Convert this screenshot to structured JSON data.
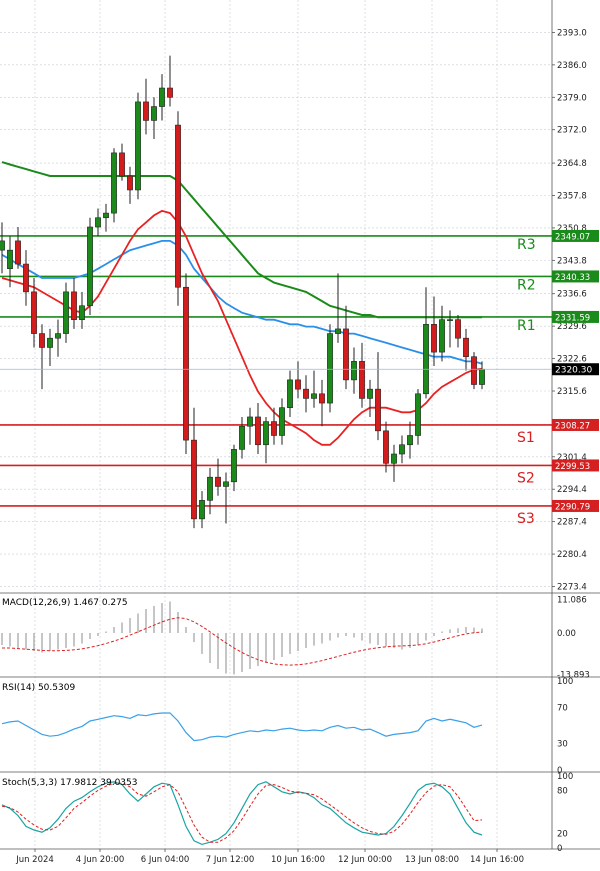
{
  "chart_data": {
    "type": "candlestick",
    "instrument_panel": {
      "y_ticks": [
        2393.0,
        2386.0,
        2379.0,
        2372.0,
        2364.8,
        2357.8,
        2350.8,
        2343.8,
        2336.6,
        2329.6,
        2322.6,
        2315.6,
        2308.4,
        2301.4,
        2294.4,
        2287.4,
        2280.4,
        2273.4
      ],
      "ylim": [
        2272.0,
        2400.0
      ],
      "last_price": "2320.30",
      "levels": [
        {
          "name": "R3",
          "value": 2349.07,
          "label": "2349.07",
          "color": "#1a8a1a"
        },
        {
          "name": "R2",
          "value": 2340.33,
          "label": "2340.33",
          "color": "#1a8a1a"
        },
        {
          "name": "R1",
          "value": 2331.59,
          "label": "2331.59",
          "color": "#1a8a1a"
        },
        {
          "name": "S1",
          "value": 2308.27,
          "label": "2308.27",
          "color": "#d42020"
        },
        {
          "name": "S2",
          "value": 2299.53,
          "label": "2299.53",
          "color": "#d42020"
        },
        {
          "name": "S3",
          "value": 2290.79,
          "label": "2290.79",
          "color": "#d42020"
        }
      ],
      "candles": [
        {
          "o": 2346,
          "h": 2352,
          "l": 2341,
          "c": 2348
        },
        {
          "o": 2342,
          "h": 2349,
          "l": 2338,
          "c": 2346
        },
        {
          "o": 2348,
          "h": 2351,
          "l": 2342,
          "c": 2343
        },
        {
          "o": 2343,
          "h": 2346,
          "l": 2334,
          "c": 2337
        },
        {
          "o": 2337,
          "h": 2340,
          "l": 2325,
          "c": 2328
        },
        {
          "o": 2328,
          "h": 2330,
          "l": 2316,
          "c": 2325
        },
        {
          "o": 2325,
          "h": 2329,
          "l": 2321,
          "c": 2327
        },
        {
          "o": 2327,
          "h": 2331,
          "l": 2323,
          "c": 2328
        },
        {
          "o": 2328,
          "h": 2339,
          "l": 2326,
          "c": 2337
        },
        {
          "o": 2337,
          "h": 2340,
          "l": 2329,
          "c": 2331
        },
        {
          "o": 2331,
          "h": 2337,
          "l": 2329,
          "c": 2334
        },
        {
          "o": 2334,
          "h": 2353,
          "l": 2332,
          "c": 2351
        },
        {
          "o": 2351,
          "h": 2355,
          "l": 2349,
          "c": 2353
        },
        {
          "o": 2353,
          "h": 2356,
          "l": 2350,
          "c": 2354
        },
        {
          "o": 2354,
          "h": 2368,
          "l": 2352,
          "c": 2367
        },
        {
          "o": 2367,
          "h": 2369,
          "l": 2361,
          "c": 2362
        },
        {
          "o": 2362,
          "h": 2364,
          "l": 2356,
          "c": 2359
        },
        {
          "o": 2359,
          "h": 2380,
          "l": 2357,
          "c": 2378
        },
        {
          "o": 2378,
          "h": 2383,
          "l": 2371,
          "c": 2374
        },
        {
          "o": 2374,
          "h": 2379,
          "l": 2370,
          "c": 2377
        },
        {
          "o": 2377,
          "h": 2384,
          "l": 2374,
          "c": 2381
        },
        {
          "o": 2381,
          "h": 2388,
          "l": 2377,
          "c": 2379
        },
        {
          "o": 2373,
          "h": 2376,
          "l": 2334,
          "c": 2338
        },
        {
          "o": 2338,
          "h": 2341,
          "l": 2302,
          "c": 2305
        },
        {
          "o": 2305,
          "h": 2312,
          "l": 2286,
          "c": 2288
        },
        {
          "o": 2288,
          "h": 2294,
          "l": 2286,
          "c": 2292
        },
        {
          "o": 2292,
          "h": 2299,
          "l": 2289,
          "c": 2297
        },
        {
          "o": 2297,
          "h": 2301,
          "l": 2293,
          "c": 2295
        },
        {
          "o": 2295,
          "h": 2298,
          "l": 2287,
          "c": 2296
        },
        {
          "o": 2296,
          "h": 2304,
          "l": 2294,
          "c": 2303
        },
        {
          "o": 2303,
          "h": 2310,
          "l": 2301,
          "c": 2308
        },
        {
          "o": 2308,
          "h": 2312,
          "l": 2304,
          "c": 2310
        },
        {
          "o": 2310,
          "h": 2313,
          "l": 2302,
          "c": 2304
        },
        {
          "o": 2304,
          "h": 2310,
          "l": 2300,
          "c": 2309
        },
        {
          "o": 2309,
          "h": 2312,
          "l": 2304,
          "c": 2306
        },
        {
          "o": 2306,
          "h": 2314,
          "l": 2304,
          "c": 2312
        },
        {
          "o": 2312,
          "h": 2320,
          "l": 2310,
          "c": 2318
        },
        {
          "o": 2318,
          "h": 2322,
          "l": 2314,
          "c": 2316
        },
        {
          "o": 2316,
          "h": 2319,
          "l": 2311,
          "c": 2314
        },
        {
          "o": 2314,
          "h": 2320,
          "l": 2312,
          "c": 2315
        },
        {
          "o": 2315,
          "h": 2318,
          "l": 2308,
          "c": 2313
        },
        {
          "o": 2313,
          "h": 2330,
          "l": 2311,
          "c": 2328
        },
        {
          "o": 2328,
          "h": 2341,
          "l": 2326,
          "c": 2329
        },
        {
          "o": 2329,
          "h": 2334,
          "l": 2316,
          "c": 2318
        },
        {
          "o": 2318,
          "h": 2325,
          "l": 2315,
          "c": 2322
        },
        {
          "o": 2322,
          "h": 2326,
          "l": 2312,
          "c": 2314
        },
        {
          "o": 2314,
          "h": 2318,
          "l": 2310,
          "c": 2316
        },
        {
          "o": 2316,
          "h": 2324,
          "l": 2305,
          "c": 2307
        },
        {
          "o": 2307,
          "h": 2309,
          "l": 2298,
          "c": 2300
        },
        {
          "o": 2300,
          "h": 2304,
          "l": 2296,
          "c": 2302
        },
        {
          "o": 2302,
          "h": 2306,
          "l": 2300,
          "c": 2304
        },
        {
          "o": 2304,
          "h": 2309,
          "l": 2301,
          "c": 2306
        },
        {
          "o": 2306,
          "h": 2316,
          "l": 2304,
          "c": 2315
        },
        {
          "o": 2315,
          "h": 2338,
          "l": 2314,
          "c": 2330
        },
        {
          "o": 2330,
          "h": 2336,
          "l": 2321,
          "c": 2324
        },
        {
          "o": 2324,
          "h": 2334,
          "l": 2322,
          "c": 2331
        },
        {
          "o": 2331,
          "h": 2333,
          "l": 2325,
          "c": 2331
        },
        {
          "o": 2331,
          "h": 2332,
          "l": 2325,
          "c": 2327
        },
        {
          "o": 2327,
          "h": 2329,
          "l": 2320,
          "c": 2323
        },
        {
          "o": 2323,
          "h": 2324,
          "l": 2316,
          "c": 2317
        },
        {
          "o": 2317,
          "h": 2322,
          "l": 2316,
          "c": 2320.3
        }
      ],
      "ma_slow": [
        2365,
        2364.5,
        2364,
        2363.5,
        2363,
        2362.5,
        2362,
        2362,
        2362,
        2362,
        2362,
        2362,
        2362,
        2362,
        2362,
        2362,
        2362,
        2362,
        2362,
        2362,
        2362,
        2362,
        2361,
        2359,
        2357,
        2355,
        2353,
        2351,
        2349,
        2347,
        2345,
        2343,
        2341,
        2340,
        2339,
        2338.5,
        2338,
        2337.5,
        2337,
        2336,
        2335,
        2334,
        2333.5,
        2333,
        2332.5,
        2332,
        2332,
        2331.5,
        2331.5,
        2331.5,
        2331.5,
        2331.5,
        2331.5,
        2331.5,
        2331.5,
        2331.5,
        2331.5,
        2331.5,
        2331.5,
        2331.5,
        2331.5
      ],
      "ma_mid": [
        2345,
        2344,
        2343,
        2342,
        2341,
        2340,
        2340,
        2340,
        2340,
        2340,
        2340.5,
        2341,
        2342,
        2343,
        2344,
        2345,
        2346,
        2346.5,
        2347,
        2347.5,
        2348,
        2348,
        2347,
        2345,
        2342,
        2340,
        2338,
        2336,
        2334.5,
        2333.5,
        2332.5,
        2332,
        2331.5,
        2331,
        2331,
        2330.5,
        2330,
        2330,
        2329.5,
        2329.5,
        2329,
        2328.5,
        2328.5,
        2328,
        2328,
        2327.5,
        2327,
        2326.5,
        2326,
        2325.5,
        2325,
        2324.5,
        2324,
        2323.5,
        2323,
        2323,
        2323,
        2322.5,
        2322,
        2322,
        2321.5
      ],
      "ma_fast": [
        2340,
        2339.5,
        2339,
        2338.5,
        2338,
        2337,
        2336,
        2335,
        2334,
        2333,
        2332.5,
        2334,
        2336,
        2339,
        2342,
        2345,
        2348,
        2350.5,
        2352,
        2353.5,
        2354.5,
        2354,
        2352,
        2349,
        2345,
        2341,
        2338,
        2335,
        2331,
        2327,
        2323,
        2319,
        2315.5,
        2313,
        2311,
        2309.5,
        2308.5,
        2307.5,
        2306.5,
        2305,
        2304,
        2304,
        2305.5,
        2307.5,
        2309.5,
        2311,
        2312,
        2312,
        2312,
        2311.5,
        2311,
        2311,
        2311.5,
        2313,
        2315,
        2316.5,
        2317.5,
        2318.5,
        2319.5,
        2320.2,
        2320.4
      ]
    },
    "x_tick_labels": [
      "Jun 2024",
      "4 Jun 20:00",
      "6 Jun 04:00",
      "7 Jun 12:00",
      "10 Jun 16:00",
      "12 Jun 00:00",
      "13 Jun 08:00",
      "14 Jun 16:00"
    ],
    "macd_panel": {
      "title": "MACD(12,26,9) 1.467 0.275",
      "y_ticks": [
        "11.086",
        "0.00",
        "-13.893"
      ],
      "ylim": [
        -14,
        12
      ],
      "histogram": [
        -4,
        -4.5,
        -5,
        -5.5,
        -6,
        -6.5,
        -6,
        -5.5,
        -5,
        -4.5,
        -3.5,
        -2,
        -1,
        0.5,
        2,
        3.5,
        5,
        6.5,
        8,
        9,
        10,
        10.5,
        7,
        2,
        -3,
        -7,
        -10,
        -12,
        -13.5,
        -13.8,
        -13,
        -12,
        -11,
        -10,
        -9,
        -8,
        -7,
        -6,
        -5,
        -4.2,
        -3.5,
        -2.5,
        -1.5,
        -1,
        -1.5,
        -2.5,
        -3.5,
        -4,
        -4.5,
        -5,
        -5.5,
        -5,
        -4,
        -2.5,
        -1,
        0.5,
        1.2,
        1.6,
        2,
        1.8,
        1.5
      ],
      "signal": [
        -5,
        -5,
        -5.2,
        -5.4,
        -5.6,
        -5.8,
        -5.9,
        -5.9,
        -5.8,
        -5.6,
        -5.3,
        -4.8,
        -4.2,
        -3.5,
        -2.7,
        -1.8,
        -0.7,
        0.4,
        1.5,
        2.6,
        3.7,
        4.6,
        5.1,
        4.8,
        3.7,
        2.2,
        0.4,
        -1.5,
        -3.3,
        -5,
        -6.5,
        -7.8,
        -8.9,
        -9.7,
        -10.3,
        -10.6,
        -10.7,
        -10.6,
        -10.3,
        -9.8,
        -9.2,
        -8.5,
        -7.8,
        -7.1,
        -6.4,
        -5.8,
        -5.3,
        -4.9,
        -4.6,
        -4.4,
        -4.3,
        -4.2,
        -4,
        -3.6,
        -3,
        -2.3,
        -1.6,
        -0.9,
        -0.3,
        0.1,
        0.3
      ]
    },
    "rsi_panel": {
      "title": "RSI(14) 50.5309",
      "y_ticks": [
        "100",
        "70",
        "30",
        "0"
      ],
      "ylim": [
        0,
        100
      ],
      "values": [
        52,
        54,
        55,
        50,
        45,
        40,
        38,
        39,
        42,
        46,
        49,
        55,
        57,
        59,
        61,
        60,
        58,
        62,
        61,
        63,
        64,
        64,
        55,
        42,
        33,
        34,
        37,
        38,
        37,
        40,
        42,
        44,
        43,
        45,
        44,
        46,
        47,
        45,
        44,
        45,
        44,
        48,
        50,
        47,
        48,
        45,
        46,
        42,
        38,
        40,
        41,
        42,
        44,
        55,
        58,
        55,
        57,
        55,
        53,
        48,
        50.5
      ]
    },
    "stoch_panel": {
      "title": "Stoch(5,3,3) 17.9812 39.0353",
      "y_ticks": [
        "100",
        "80",
        "20",
        "0"
      ],
      "ylim": [
        0,
        100
      ],
      "k": [
        60,
        55,
        45,
        30,
        25,
        22,
        28,
        40,
        55,
        65,
        70,
        78,
        85,
        90,
        92,
        88,
        75,
        65,
        75,
        85,
        90,
        88,
        60,
        30,
        10,
        5,
        8,
        12,
        20,
        35,
        55,
        75,
        88,
        92,
        85,
        78,
        75,
        78,
        76,
        70,
        60,
        55,
        45,
        35,
        28,
        22,
        20,
        18,
        20,
        30,
        45,
        62,
        80,
        88,
        90,
        85,
        75,
        55,
        35,
        22,
        18
      ],
      "d": [
        58,
        56,
        50,
        40,
        32,
        26,
        25,
        30,
        42,
        55,
        63,
        72,
        80,
        86,
        90,
        90,
        85,
        75,
        72,
        78,
        85,
        88,
        78,
        55,
        32,
        15,
        8,
        8,
        14,
        24,
        40,
        58,
        75,
        87,
        88,
        84,
        79,
        77,
        76,
        74,
        68,
        60,
        52,
        43,
        35,
        28,
        23,
        20,
        19,
        23,
        33,
        47,
        63,
        77,
        86,
        88,
        85,
        72,
        55,
        38,
        39
      ]
    }
  }
}
